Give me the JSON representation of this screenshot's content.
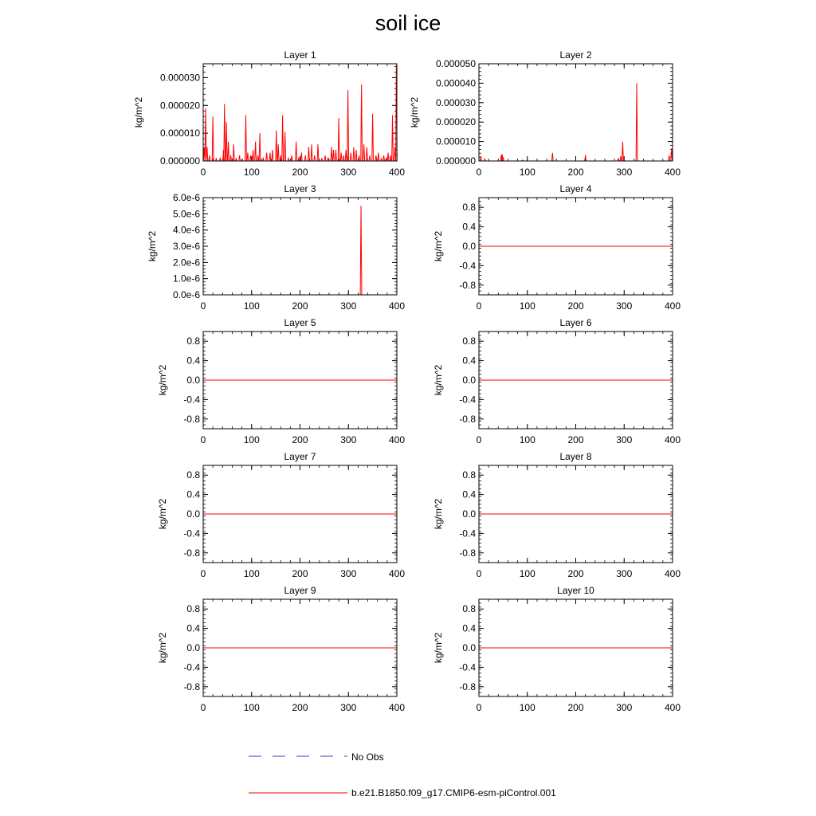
{
  "title": "soil ice",
  "colors": {
    "model": "#ff0000",
    "obs": "#3b3bd0",
    "axis": "#000000"
  },
  "legend": {
    "position": "bottom-center",
    "entries": [
      {
        "label": "No Obs",
        "color": "#3b3bd0",
        "style": "dashed"
      },
      {
        "label": "b.e21.B1850.f09_g17.CMIP6-esm-piControl.001",
        "color": "#ff0000",
        "style": "solid"
      }
    ]
  },
  "chart_data": [
    {
      "type": "line",
      "title": "Layer 1",
      "ylabel": "kg/m^2",
      "xlim": [
        0,
        400
      ],
      "ylim": [
        0,
        3.5e-05
      ],
      "x_ticks": [
        "0",
        "100",
        "200",
        "300",
        "400"
      ],
      "x_tick_values": [
        0,
        100,
        200,
        300,
        400
      ],
      "y_ticks": [
        "0.000000",
        "0.000010",
        "0.000020",
        "0.000030"
      ],
      "y_tick_values": [
        0,
        1e-05,
        2e-05,
        3e-05
      ],
      "series": [
        {
          "spikes": [
            [
              2,
              5e-06
            ],
            [
              5,
              1.9e-05
            ],
            [
              8,
              5e-06
            ],
            [
              13,
              2e-06
            ],
            [
              20,
              1.6e-05
            ],
            [
              27,
              1e-06
            ],
            [
              35,
              1e-06
            ],
            [
              42,
              4e-06
            ],
            [
              44,
              2.05e-05
            ],
            [
              48,
              1.4e-05
            ],
            [
              52,
              7e-06
            ],
            [
              57,
              2e-06
            ],
            [
              63,
              6e-06
            ],
            [
              68,
              1e-06
            ],
            [
              75,
              2e-06
            ],
            [
              81,
              5e-07
            ],
            [
              88,
              1.65e-05
            ],
            [
              92,
              3e-06
            ],
            [
              98,
              2e-06
            ],
            [
              103,
              4e-06
            ],
            [
              108,
              7e-06
            ],
            [
              113,
              2e-06
            ],
            [
              117,
              1e-05
            ],
            [
              124,
              1e-06
            ],
            [
              131,
              3e-06
            ],
            [
              138,
              3e-06
            ],
            [
              143,
              4e-06
            ],
            [
              151,
              1.1e-05
            ],
            [
              155,
              6e-06
            ],
            [
              160,
              2e-06
            ],
            [
              164,
              1.65e-05
            ],
            [
              169,
              1.05e-05
            ],
            [
              176,
              1e-06
            ],
            [
              183,
              2e-06
            ],
            [
              192,
              7e-06
            ],
            [
              197,
              1e-06
            ],
            [
              203,
              3e-06
            ],
            [
              211,
              2e-06
            ],
            [
              218,
              5e-06
            ],
            [
              224,
              6e-06
            ],
            [
              230,
              2e-06
            ],
            [
              237,
              6e-06
            ],
            [
              245,
              1e-06
            ],
            [
              252,
              2e-06
            ],
            [
              258,
              1e-06
            ],
            [
              265,
              5e-06
            ],
            [
              269,
              4e-06
            ],
            [
              274,
              4e-06
            ],
            [
              280,
              1.55e-05
            ],
            [
              285,
              3e-06
            ],
            [
              290,
              2e-06
            ],
            [
              295,
              4e-06
            ],
            [
              299,
              2.55e-05
            ],
            [
              305,
              3e-06
            ],
            [
              311,
              5e-06
            ],
            [
              316,
              4e-06
            ],
            [
              322,
              2e-06
            ],
            [
              327,
              2.75e-05
            ],
            [
              332,
              6e-06
            ],
            [
              338,
              5e-06
            ],
            [
              344,
              2e-06
            ],
            [
              350,
              1.7e-05
            ],
            [
              357,
              2e-06
            ],
            [
              362,
              3e-06
            ],
            [
              368,
              1e-06
            ],
            [
              373,
              2e-06
            ],
            [
              378,
              1e-06
            ],
            [
              382,
              3e-06
            ],
            [
              387,
              2e-06
            ],
            [
              391,
              1.65e-05
            ],
            [
              396,
              5e-06
            ],
            [
              399,
              3.45e-05
            ]
          ]
        }
      ]
    },
    {
      "type": "line",
      "title": "Layer 2",
      "ylabel": "kg/m^2",
      "xlim": [
        0,
        400
      ],
      "ylim": [
        0,
        5e-05
      ],
      "x_ticks": [
        "0",
        "100",
        "200",
        "300",
        "400"
      ],
      "x_tick_values": [
        0,
        100,
        200,
        300,
        400
      ],
      "y_ticks": [
        "0.000000",
        "0.000010",
        "0.000020",
        "0.000030",
        "0.000040",
        "0.000050"
      ],
      "y_tick_values": [
        0,
        1e-05,
        2e-05,
        3e-05,
        4e-05,
        5e-05
      ],
      "series": [
        {
          "spikes": [
            [
              4,
              2.5e-06
            ],
            [
              12,
              1e-06
            ],
            [
              46,
              3e-06
            ],
            [
              48,
              3.5e-06
            ],
            [
              50,
              2e-06
            ],
            [
              90,
              5e-07
            ],
            [
              152,
              4.2e-06
            ],
            [
              220,
              3e-06
            ],
            [
              288,
              1.5e-06
            ],
            [
              293,
              2.5e-06
            ],
            [
              297,
              1e-05
            ],
            [
              300,
              1e-06
            ],
            [
              326,
              4e-05
            ],
            [
              393,
              3e-06
            ],
            [
              398,
              6.5e-06
            ]
          ]
        }
      ]
    },
    {
      "type": "line",
      "title": "Layer 3",
      "ylabel": "kg/m^2",
      "xlim": [
        0,
        400
      ],
      "ylim": [
        0,
        6e-06
      ],
      "x_ticks": [
        "0",
        "100",
        "200",
        "300",
        "400"
      ],
      "x_tick_values": [
        0,
        100,
        200,
        300,
        400
      ],
      "y_ticks": [
        "0.0e-6",
        "1.0e-6",
        "2.0e-6",
        "3.0e-6",
        "4.0e-6",
        "5.0e-6",
        "6.0e-6"
      ],
      "y_tick_values": [
        0,
        1e-06,
        2e-06,
        3e-06,
        4e-06,
        5e-06,
        6e-06
      ],
      "series": [
        {
          "spikes": [
            [
              326,
              5.5e-06
            ]
          ]
        }
      ]
    },
    {
      "type": "line",
      "title": "Layer 4",
      "ylabel": "kg/m^2",
      "xlim": [
        0,
        400
      ],
      "ylim": [
        -1,
        1
      ],
      "x_ticks": [
        "0",
        "100",
        "200",
        "300",
        "400"
      ],
      "x_tick_values": [
        0,
        100,
        200,
        300,
        400
      ],
      "y_ticks": [
        "0.8",
        "0.4",
        "0.0",
        "-0.4",
        "-0.8"
      ],
      "y_tick_values": [
        0.8,
        0.4,
        0,
        -0.4,
        -0.8
      ],
      "series": [
        {
          "constant": 0
        }
      ]
    },
    {
      "type": "line",
      "title": "Layer 5",
      "ylabel": "kg/m^2",
      "xlim": [
        0,
        400
      ],
      "ylim": [
        -1,
        1
      ],
      "x_ticks": [
        "0",
        "100",
        "200",
        "300",
        "400"
      ],
      "x_tick_values": [
        0,
        100,
        200,
        300,
        400
      ],
      "y_ticks": [
        "0.8",
        "0.4",
        "0.0",
        "-0.4",
        "-0.8"
      ],
      "y_tick_values": [
        0.8,
        0.4,
        0,
        -0.4,
        -0.8
      ],
      "series": [
        {
          "constant": 0
        }
      ]
    },
    {
      "type": "line",
      "title": "Layer 6",
      "ylabel": "kg/m^2",
      "xlim": [
        0,
        400
      ],
      "ylim": [
        -1,
        1
      ],
      "x_ticks": [
        "0",
        "100",
        "200",
        "300",
        "400"
      ],
      "x_tick_values": [
        0,
        100,
        200,
        300,
        400
      ],
      "y_ticks": [
        "0.8",
        "0.4",
        "0.0",
        "-0.4",
        "-0.8"
      ],
      "y_tick_values": [
        0.8,
        0.4,
        0,
        -0.4,
        -0.8
      ],
      "series": [
        {
          "constant": 0
        }
      ]
    },
    {
      "type": "line",
      "title": "Layer 7",
      "ylabel": "kg/m^2",
      "xlim": [
        0,
        400
      ],
      "ylim": [
        -1,
        1
      ],
      "x_ticks": [
        "0",
        "100",
        "200",
        "300",
        "400"
      ],
      "x_tick_values": [
        0,
        100,
        200,
        300,
        400
      ],
      "y_ticks": [
        "0.8",
        "0.4",
        "0.0",
        "-0.4",
        "-0.8"
      ],
      "y_tick_values": [
        0.8,
        0.4,
        0,
        -0.4,
        -0.8
      ],
      "series": [
        {
          "constant": 0
        }
      ]
    },
    {
      "type": "line",
      "title": "Layer 8",
      "ylabel": "kg/m^2",
      "xlim": [
        0,
        400
      ],
      "ylim": [
        -1,
        1
      ],
      "x_ticks": [
        "0",
        "100",
        "200",
        "300",
        "400"
      ],
      "x_tick_values": [
        0,
        100,
        200,
        300,
        400
      ],
      "y_ticks": [
        "0.8",
        "0.4",
        "0.0",
        "-0.4",
        "-0.8"
      ],
      "y_tick_values": [
        0.8,
        0.4,
        0,
        -0.4,
        -0.8
      ],
      "series": [
        {
          "constant": 0
        }
      ]
    },
    {
      "type": "line",
      "title": "Layer 9",
      "ylabel": "kg/m^2",
      "xlim": [
        0,
        400
      ],
      "ylim": [
        -1,
        1
      ],
      "x_ticks": [
        "0",
        "100",
        "200",
        "300",
        "400"
      ],
      "x_tick_values": [
        0,
        100,
        200,
        300,
        400
      ],
      "y_ticks": [
        "0.8",
        "0.4",
        "0.0",
        "-0.4",
        "-0.8"
      ],
      "y_tick_values": [
        0.8,
        0.4,
        0,
        -0.4,
        -0.8
      ],
      "series": [
        {
          "constant": 0
        }
      ]
    },
    {
      "type": "line",
      "title": "Layer 10",
      "ylabel": "kg/m^2",
      "xlim": [
        0,
        400
      ],
      "ylim": [
        -1,
        1
      ],
      "x_ticks": [
        "0",
        "100",
        "200",
        "300",
        "400"
      ],
      "x_tick_values": [
        0,
        100,
        200,
        300,
        400
      ],
      "y_ticks": [
        "0.8",
        "0.4",
        "0.0",
        "-0.4",
        "-0.8"
      ],
      "y_tick_values": [
        0.8,
        0.4,
        0,
        -0.4,
        -0.8
      ],
      "series": [
        {
          "constant": 0
        }
      ]
    }
  ]
}
